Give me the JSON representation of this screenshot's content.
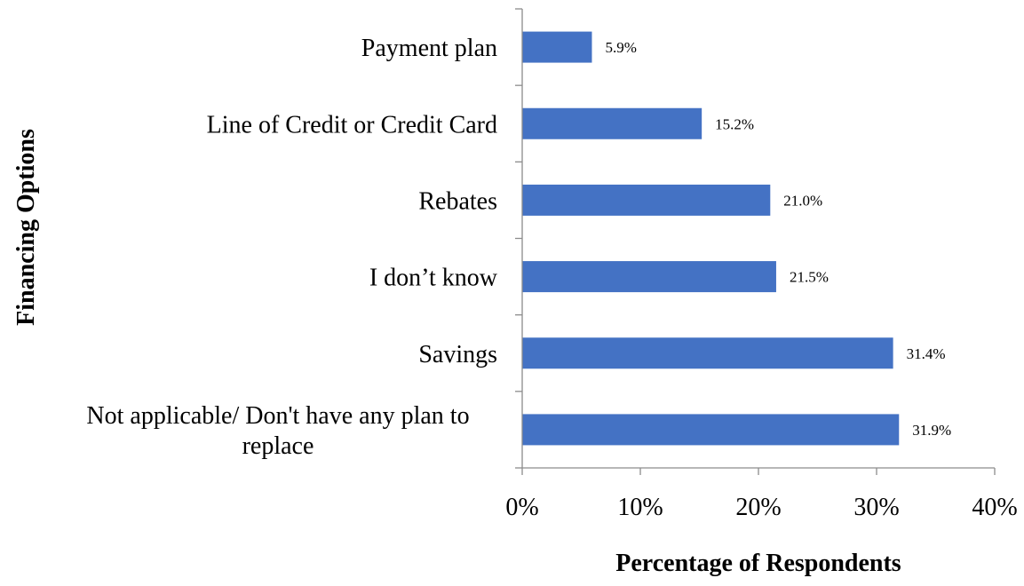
{
  "chart_data": {
    "type": "bar",
    "orientation": "horizontal",
    "categories": [
      "Payment plan",
      "Line of Credit or Credit Card",
      "Rebates",
      "I don’t know",
      "Savings",
      "Not applicable/ Don't have any plan to replace"
    ],
    "values": [
      5.9,
      15.2,
      21.0,
      21.5,
      31.4,
      31.9
    ],
    "data_labels": [
      "5.9%",
      "15.2%",
      "21.0%",
      "21.5%",
      "31.4%",
      "31.9%"
    ],
    "xlim": [
      0,
      40
    ],
    "xticks": [
      0,
      10,
      20,
      30,
      40
    ],
    "xtick_labels": [
      "0%",
      "10%",
      "20%",
      "30%",
      "40%"
    ],
    "xlabel": "Percentage of Respondents",
    "ylabel": "Financing Options",
    "title": "",
    "grid": false,
    "legend": "none",
    "bar_color": "#4472c4"
  }
}
